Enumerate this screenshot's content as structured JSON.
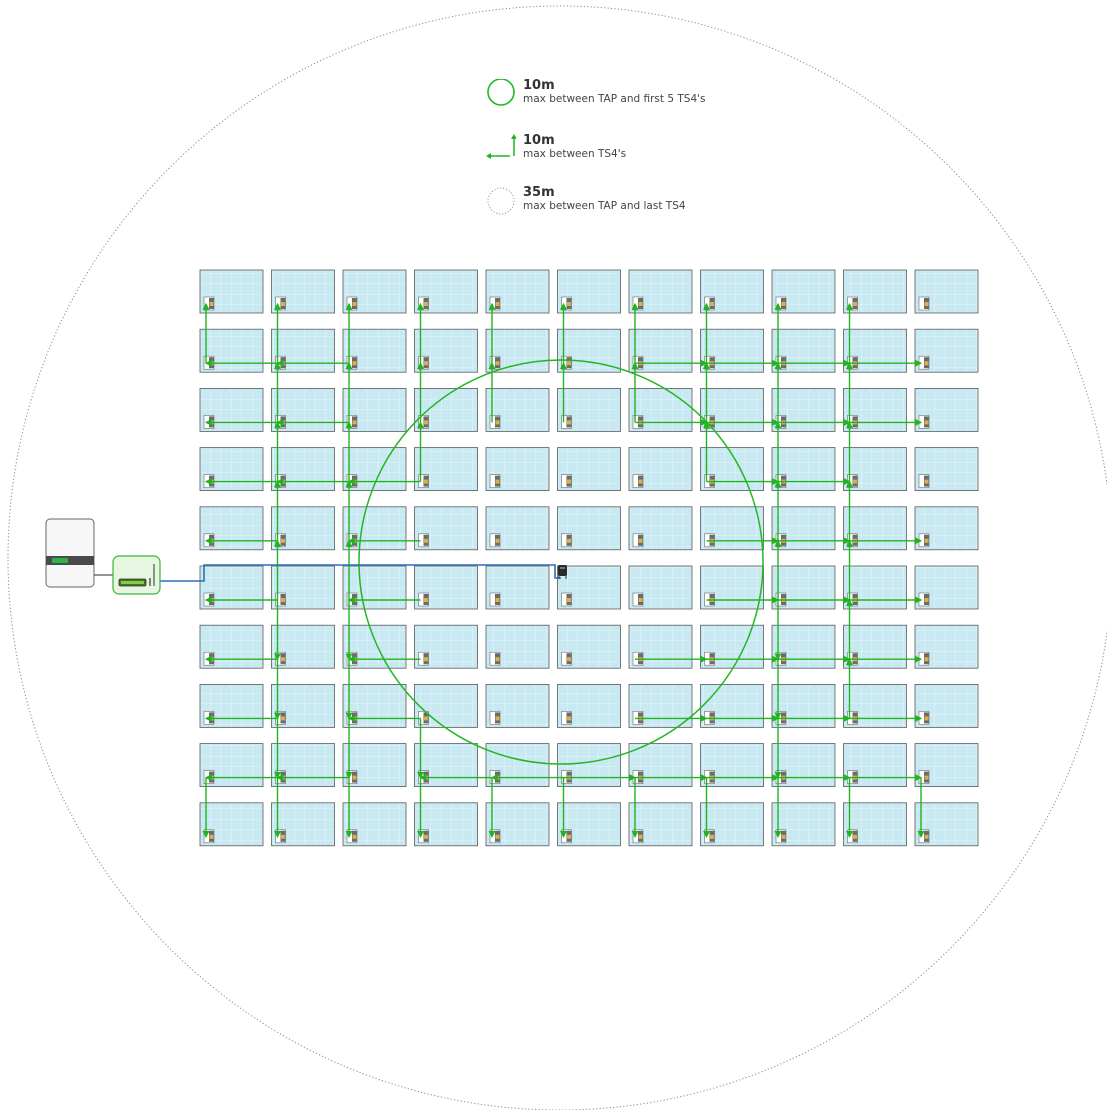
{
  "legend": [
    {
      "distance": "10m",
      "text": "max between TAP and first 5 TS4's",
      "symbol": "green-circle-icon"
    },
    {
      "distance": "10m",
      "text": "max between TS4's",
      "symbol": "green-arrows-icon"
    },
    {
      "distance": "35m",
      "text": "max between TAP and last TS4",
      "symbol": "dotted-circle-icon"
    }
  ],
  "colors": {
    "panel_fill": "#c9e9f2",
    "panel_border": "#5a5a5a",
    "panel_grid": "#ffffff",
    "connection": "#1fb51f",
    "tap_range": "#22b822",
    "comm_cable": "#2f6fb5",
    "max_range": "#888888",
    "optimizer": "#6b6b6b",
    "optimizer_tag": "#d9b04a"
  },
  "array": {
    "rows": 10,
    "columns": 11
  },
  "devices": [
    {
      "id": "inverter",
      "icon": "inverter-icon",
      "status_color": "#2ab54a"
    },
    {
      "id": "cca",
      "icon": "gateway-icon",
      "status_color": "#2ab54a"
    },
    {
      "id": "tap",
      "icon": "tap-icon"
    }
  ]
}
